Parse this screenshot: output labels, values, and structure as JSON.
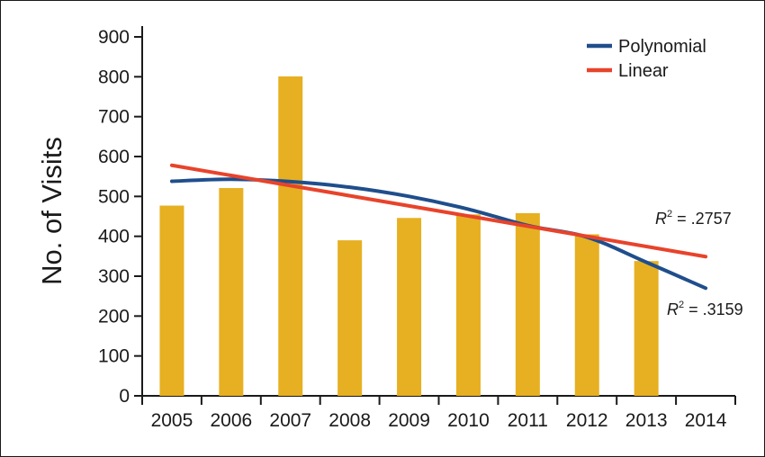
{
  "chart_data": {
    "type": "bar",
    "categories": [
      "2005",
      "2006",
      "2007",
      "2008",
      "2009",
      "2010",
      "2011",
      "2012",
      "2013",
      "2014"
    ],
    "values": [
      477,
      521,
      801,
      390,
      446,
      455,
      458,
      405,
      338,
      null
    ],
    "bar_color": "#e6b022",
    "xlabel": "",
    "ylabel": "No. of Visits",
    "ylim": [
      0,
      900
    ],
    "yticks": [
      0,
      100,
      200,
      300,
      400,
      500,
      600,
      700,
      800,
      900
    ],
    "grid": false,
    "legend_position": "top-right",
    "trendlines": [
      {
        "name": "Polynomial",
        "color": "#1f4e8c",
        "r2_label": ".3159",
        "points": [
          [
            "2005",
            538
          ],
          [
            "2006",
            543
          ],
          [
            "2007",
            537
          ],
          [
            "2008",
            523
          ],
          [
            "2009",
            500
          ],
          [
            "2010",
            468
          ],
          [
            "2011",
            427
          ],
          [
            "2012",
            398
          ],
          [
            "2013",
            335
          ],
          [
            "2014",
            270
          ]
        ]
      },
      {
        "name": "Linear",
        "color": "#e8432b",
        "r2_label": ".2757",
        "points": [
          [
            "2005",
            578
          ],
          [
            "2014",
            349
          ]
        ]
      }
    ]
  }
}
